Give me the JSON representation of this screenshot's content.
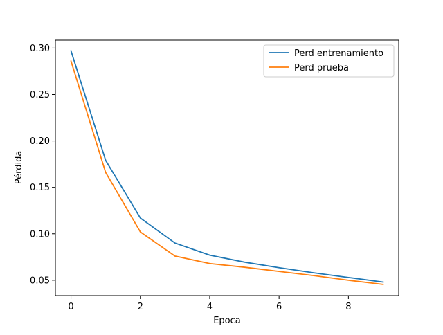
{
  "chart_data": {
    "type": "line",
    "title": "",
    "xlabel": "Epoca",
    "ylabel": "Pérdida",
    "x": [
      0,
      1,
      2,
      3,
      4,
      5,
      6,
      7,
      8,
      9
    ],
    "series": [
      {
        "name": "Perd entrenamiento",
        "color": "#1f77b4",
        "values": [
          0.297,
          0.179,
          0.117,
          0.09,
          0.077,
          0.0695,
          0.0635,
          0.058,
          0.053,
          0.048
        ]
      },
      {
        "name": "Perd prueba",
        "color": "#ff7f0e",
        "values": [
          0.286,
          0.166,
          0.102,
          0.076,
          0.068,
          0.064,
          0.0595,
          0.055,
          0.05,
          0.0455
        ]
      }
    ],
    "xlim": [
      -0.45,
      9.45
    ],
    "ylim": [
      0.0335,
      0.3085
    ],
    "xticks": [
      0,
      2,
      4,
      6,
      8
    ],
    "xtick_labels": [
      "0",
      "2",
      "4",
      "6",
      "8"
    ],
    "yticks": [
      0.05,
      0.1,
      0.15,
      0.2,
      0.25,
      0.3
    ],
    "ytick_labels": [
      "0.05",
      "0.10",
      "0.15",
      "0.20",
      "0.25",
      "0.30"
    ],
    "grid": false,
    "legend_position": "top-right"
  }
}
